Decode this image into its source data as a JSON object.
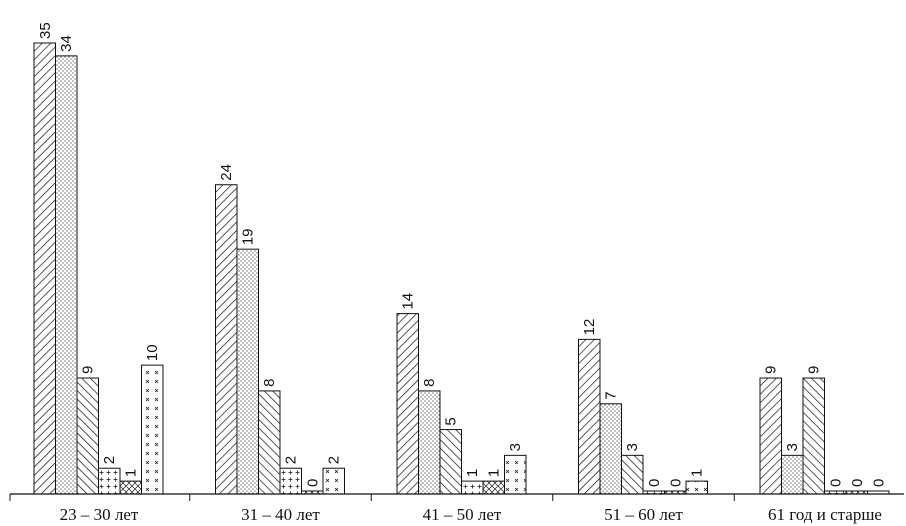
{
  "chart_data": {
    "type": "bar",
    "categories": [
      "23 – 30 лет",
      "31 – 40 лет",
      "41 – 50 лет",
      "51 – 60 лет",
      "61 год и старше"
    ],
    "series": [
      {
        "values": [
          35,
          24,
          14,
          12,
          9
        ]
      },
      {
        "values": [
          34,
          19,
          8,
          7,
          3
        ]
      },
      {
        "values": [
          9,
          8,
          5,
          3,
          9
        ]
      },
      {
        "values": [
          2,
          2,
          1,
          0,
          0
        ]
      },
      {
        "values": [
          1,
          0,
          1,
          0,
          0
        ]
      },
      {
        "values": [
          10,
          2,
          3,
          1,
          0
        ]
      }
    ],
    "series_patterns": [
      "diagonal-hatch",
      "dots",
      "back-diagonal-hatch",
      "plus-marks",
      "cross-hatch",
      "x-marks"
    ],
    "ylim": [
      0,
      35
    ],
    "grid": false,
    "legend": "none",
    "colors": {
      "ink": "#111111",
      "background": "#ffffff"
    }
  }
}
